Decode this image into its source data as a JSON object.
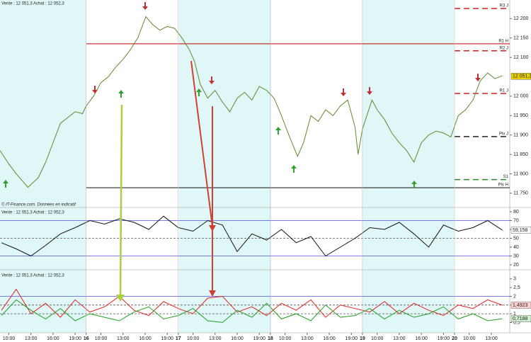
{
  "chart_data": [
    {
      "type": "line",
      "header": "Vente : 12 051,3 Achat : 12 052,3",
      "footer": "© IT-Finance.com. Données en indicatif",
      "xlim": [
        0.8,
        70
      ],
      "ylim": [
        11715,
        12248
      ],
      "yticks": [
        {
          "value": 12200,
          "label": "12 200"
        },
        {
          "value": 12150,
          "label": "12 150"
        },
        {
          "value": 12100,
          "label": "12 100"
        },
        {
          "value": 12000,
          "label": "12 000"
        },
        {
          "value": 11950,
          "label": "11 950"
        },
        {
          "value": 11900,
          "label": "11 900"
        },
        {
          "value": 11850,
          "label": "11 850"
        },
        {
          "value": 11800,
          "label": "11 800"
        },
        {
          "value": 11750,
          "label": "11 750"
        }
      ],
      "x": [
        0.8,
        2,
        3,
        4.6,
        6,
        7,
        8,
        9,
        10,
        11,
        12,
        12.5,
        13.5,
        14.5,
        15.5,
        16.5,
        17.5,
        18.5,
        19.5,
        20.6,
        21.5,
        22.5,
        23.5,
        24.5,
        25.5,
        26.5,
        27.2,
        28,
        29,
        30,
        31,
        32,
        33,
        34,
        35,
        36,
        37,
        38,
        39,
        40,
        41.2,
        42,
        43,
        44,
        45,
        46,
        47,
        48,
        49,
        49.4,
        50,
        51.3,
        52,
        53,
        54,
        55,
        56,
        57,
        58,
        59,
        60,
        61,
        62,
        63,
        64,
        65,
        66,
        67,
        68,
        69
      ],
      "series": [
        {
          "color": "#5f8a2a",
          "values": [
            11860,
            11825,
            11800,
            11765,
            11790,
            11830,
            11880,
            11930,
            11945,
            11960,
            11955,
            11975,
            12000,
            12035,
            12050,
            12075,
            12095,
            12120,
            12150,
            12205,
            12185,
            12170,
            12180,
            12175,
            12150,
            12120,
            12090,
            12030,
            11995,
            12015,
            11985,
            11960,
            11995,
            12010,
            11990,
            12025,
            12015,
            11995,
            11950,
            11900,
            11845,
            11880,
            11950,
            11935,
            11965,
            11950,
            11975,
            11990,
            11920,
            11850,
            11915,
            11990,
            11965,
            11940,
            11905,
            11880,
            11860,
            11830,
            11880,
            11900,
            11910,
            11905,
            11895,
            11950,
            11965,
            11990,
            12040,
            12060,
            12045,
            12053
          ]
        }
      ],
      "levels": [
        {
          "label": "R3 J",
          "value": 12226,
          "color": "#d22020",
          "dashed": true,
          "from": 62.5
        },
        {
          "label": "R1 H",
          "value": 12135,
          "color": "#c00000",
          "dashed": false,
          "from": 12.5
        },
        {
          "label": "R2 J",
          "value": 12117,
          "color": "#d22020",
          "dashed": true,
          "from": 62.5
        },
        {
          "label": "R1 J",
          "value": 12007,
          "color": "#d22020",
          "dashed": true,
          "from": 62.5
        },
        {
          "label": "Piv J",
          "value": 11896,
          "color": "#222222",
          "dashed": true,
          "from": 62.5
        },
        {
          "label": "S1",
          "value": 11785,
          "color": "#2a8a2a",
          "dashed": true,
          "from": 62.5
        },
        {
          "label": "Piv H",
          "value": 11764,
          "color": "#111111",
          "dashed": false,
          "from": 12.5
        }
      ],
      "current": {
        "value": 12051.3,
        "label": "12 051,3",
        "color": "#e8d000"
      }
    },
    {
      "type": "line",
      "header": "Vente : 12 051,3 Achat : 12 052,3",
      "xlim": [
        0.8,
        70
      ],
      "ylim": [
        15.2,
        83.2
      ],
      "yticks": [
        80,
        70,
        60,
        50,
        40,
        30,
        20
      ],
      "refs": [
        {
          "value": 70,
          "color": "#5050e0",
          "dashed": false
        },
        {
          "value": 50,
          "color": "#555555",
          "dashed": true
        },
        {
          "value": 30,
          "color": "#5050e0",
          "dashed": false
        }
      ],
      "x": [
        1,
        3,
        5,
        7,
        9,
        11,
        13,
        15,
        17,
        19,
        21,
        23,
        25,
        27,
        29,
        31,
        33,
        35,
        37,
        39,
        41,
        43,
        45,
        47,
        49,
        51,
        53,
        55,
        57,
        59,
        61,
        63,
        65,
        67,
        69
      ],
      "series": [
        {
          "color": "#111111",
          "values": [
            45,
            38,
            30,
            42,
            55,
            62,
            70,
            66,
            72,
            68,
            60,
            75,
            62,
            58,
            70,
            65,
            35,
            55,
            48,
            60,
            45,
            52,
            30,
            40,
            50,
            62,
            60,
            68,
            55,
            40,
            65,
            58,
            62,
            70,
            59.158
          ]
        }
      ],
      "current": {
        "value": 59.158,
        "label": "59,158",
        "color": "#ffffff"
      }
    },
    {
      "type": "line",
      "header": "Vente : 12 051,3 Achat : 12 052,3",
      "xlim": [
        0.8,
        70
      ],
      "ylim": [
        -0.05,
        3.4
      ],
      "yticks": [
        3,
        {
          "value": 2.5,
          "label": "2,5"
        },
        2,
        {
          "value": 1.5,
          "label": "1,5"
        },
        1,
        {
          "value": 0.5,
          "label": "0,5"
        }
      ],
      "refs": [
        {
          "value": 2,
          "color": "#5050e0",
          "dashed": false
        },
        {
          "value": 1.5,
          "color": "#555555",
          "dashed": true
        },
        {
          "value": 1,
          "color": "#555555",
          "dashed": true
        }
      ],
      "xticks": [
        {
          "value": 2,
          "label": "10:00"
        },
        {
          "value": 5,
          "label": "13:00"
        },
        {
          "value": 8,
          "label": "16:00"
        },
        {
          "value": 11,
          "label": "19:00"
        },
        {
          "value": 12.5,
          "label": "16"
        },
        {
          "value": 14.5,
          "label": "10:00"
        },
        {
          "value": 17.5,
          "label": "13:00"
        },
        {
          "value": 20.5,
          "label": "16:00"
        },
        {
          "value": 23.5,
          "label": "19:00"
        },
        {
          "value": 25,
          "label": "17"
        },
        {
          "value": 27,
          "label": "10:00"
        },
        {
          "value": 30,
          "label": "13:00"
        },
        {
          "value": 33,
          "label": "16:00"
        },
        {
          "value": 36,
          "label": "19:00"
        },
        {
          "value": 37.5,
          "label": "18"
        },
        {
          "value": 39.5,
          "label": "10:00"
        },
        {
          "value": 42.5,
          "label": "13:00"
        },
        {
          "value": 45.5,
          "label": "16:00"
        },
        {
          "value": 48.5,
          "label": "19:00"
        },
        {
          "value": 50,
          "label": "19"
        },
        {
          "value": 52,
          "label": "10:00"
        },
        {
          "value": 55,
          "label": "13:00"
        },
        {
          "value": 58,
          "label": "16:00"
        },
        {
          "value": 61,
          "label": "19:00"
        },
        {
          "value": 62.5,
          "label": "20"
        },
        {
          "value": 64.5,
          "label": "10:00"
        },
        {
          "value": 67.5,
          "label": "13:00"
        }
      ],
      "x": [
        1,
        3,
        5,
        7,
        9,
        11,
        13,
        15,
        17,
        19,
        21,
        23,
        25,
        27,
        29,
        31,
        33,
        35,
        37,
        39,
        41,
        43,
        45,
        47,
        49,
        51,
        53,
        55,
        57,
        59,
        61,
        63,
        65,
        67,
        69
      ],
      "series": [
        {
          "color": "#e02020",
          "values": [
            1.2,
            2.4,
            1.0,
            1.6,
            0.8,
            1.8,
            1.1,
            1.4,
            2.0,
            1.2,
            0.9,
            1.7,
            1.3,
            1.0,
            1.9,
            2.0,
            1.1,
            1.4,
            0.9,
            1.6,
            1.2,
            1.8,
            0.8,
            1.5,
            1.3,
            1.1,
            1.7,
            1.0,
            1.6,
            1.2,
            0.9,
            1.5,
            1.3,
            1.8,
            1.4923
          ]
        },
        {
          "color": "#20a020",
          "values": [
            0.9,
            1.8,
            1.2,
            0.7,
            1.3,
            0.6,
            1.0,
            0.8,
            0.6,
            1.1,
            1.4,
            0.7,
            0.9,
            1.3,
            0.6,
            0.5,
            1.2,
            0.8,
            1.6,
            0.7,
            1.0,
            0.6,
            1.5,
            0.8,
            0.9,
            1.3,
            0.7,
            1.2,
            0.8,
            1.0,
            1.4,
            0.7,
            1.0,
            0.6,
            0.7188
          ]
        }
      ],
      "current_values": [
        {
          "value": 1.4923,
          "label": "1,4923",
          "color": "#ffd0d0"
        },
        {
          "value": 0.7188,
          "label": "0,7188",
          "color": "#d0f0d0"
        }
      ]
    }
  ]
}
